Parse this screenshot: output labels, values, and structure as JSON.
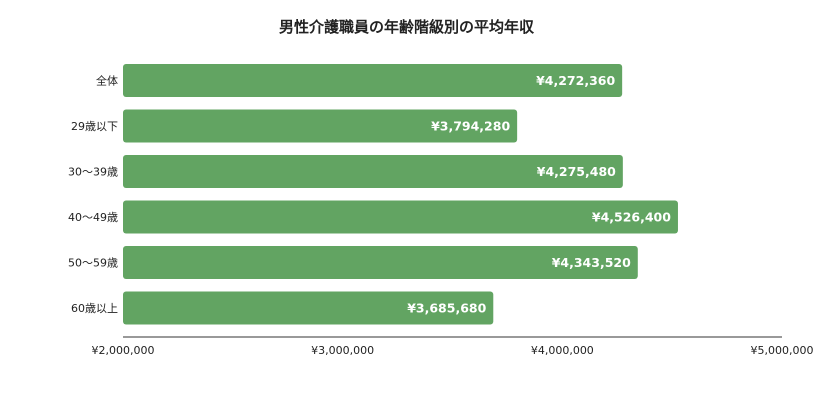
{
  "chart_data": {
    "type": "bar",
    "orientation": "horizontal",
    "title": "男性介護職員の年齢階級別の平均年収",
    "categories": [
      "全体",
      "29歳以下",
      "30〜39歳",
      "40〜49歳",
      "50〜59歳",
      "60歳以上"
    ],
    "values": [
      4272360,
      3794280,
      4275480,
      4526400,
      4343520,
      3685680
    ],
    "value_labels": [
      "¥4,272,360",
      "¥3,794,280",
      "¥4,275,480",
      "¥4,526,400",
      "¥4,343,520",
      "¥3,685,680"
    ],
    "xlim": [
      2000000,
      5000000
    ],
    "x_ticks": [
      2000000,
      3000000,
      4000000,
      5000000
    ],
    "x_tick_labels": [
      "¥2,000,000",
      "¥3,000,000",
      "¥4,000,000",
      "¥5,000,000"
    ],
    "xlabel": "",
    "ylabel": "",
    "grid": false,
    "bar_color": "#62a462",
    "label_color": "#ffffff"
  }
}
